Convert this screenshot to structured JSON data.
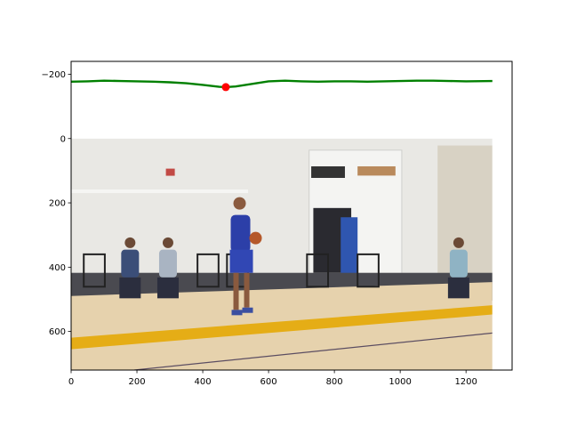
{
  "chart_data": {
    "type": "line",
    "title": "",
    "xlabel": "",
    "ylabel": "",
    "xlim": [
      0,
      1340
    ],
    "ylim": [
      720,
      -240
    ],
    "y_inverted": true,
    "grid": false,
    "xticks": [
      0,
      200,
      400,
      600,
      800,
      1000,
      1200
    ],
    "yticks": [
      -200,
      0,
      200,
      400,
      600
    ],
    "xtick_labels": [
      "0",
      "200",
      "400",
      "600",
      "800",
      "1000",
      "1200"
    ],
    "ytick_labels": [
      "−200",
      "0",
      "200",
      "400",
      "600"
    ],
    "background_image": {
      "x_extent": [
        0,
        1280
      ],
      "y_extent": [
        0,
        720
      ],
      "description": "indoor basketball practice gym"
    },
    "series": [
      {
        "color": "#008000",
        "x": [
          0,
          50,
          100,
          150,
          200,
          250,
          300,
          350,
          400,
          450,
          470,
          500,
          550,
          600,
          650,
          700,
          750,
          800,
          850,
          900,
          950,
          1000,
          1050,
          1100,
          1150,
          1200,
          1280
        ],
        "y": [
          -177,
          -178,
          -180,
          -179,
          -178,
          -177,
          -175,
          -172,
          -167,
          -161,
          -160,
          -162,
          -170,
          -178,
          -180,
          -178,
          -177,
          -178,
          -178,
          -177,
          -178,
          -179,
          -180,
          -180,
          -179,
          -178,
          -179
        ]
      }
    ],
    "markers": [
      {
        "x": 470,
        "y": -160,
        "color": "#ff0000"
      }
    ],
    "colors": {
      "court_wall": "#e9e8e4",
      "court_floor": "#e6d2ad",
      "court_stripe": "#e5ad16",
      "floor_shadow": "#4a4a50"
    }
  }
}
